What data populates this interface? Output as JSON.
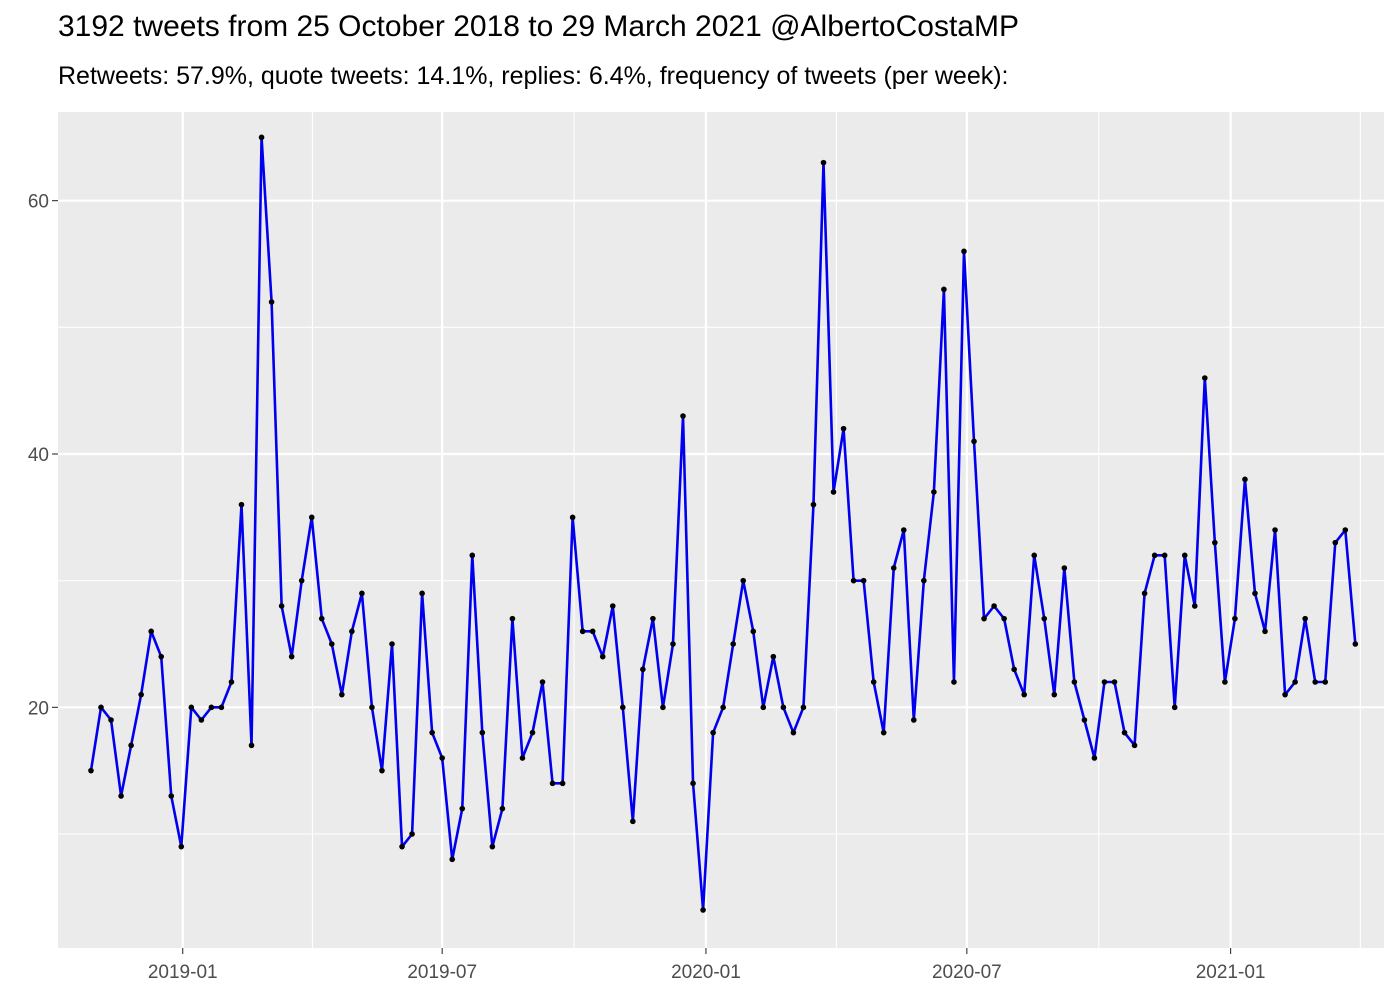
{
  "chart_data": {
    "type": "line",
    "title": "3192 tweets from 25 October 2018 to 29 March 2021 @AlbertoCostaMP",
    "subtitle": "Retweets: 57.9%, quote tweets: 14.1%, replies: 6.4%, frequency of tweets (per week):",
    "xlabel": "",
    "ylabel": "",
    "x_tick_labels": [
      "2019-01",
      "2019-07",
      "2020-01",
      "2020-07",
      "2021-01"
    ],
    "y_tick_labels": [
      "20",
      "40",
      "60"
    ],
    "y_ticks": [
      20,
      40,
      60
    ],
    "ylim": [
      1,
      67
    ],
    "xlim": [
      "2018-10-06",
      "2021-04-18"
    ],
    "x_tick_dates": [
      "2019-01-01",
      "2019-07-01",
      "2020-01-01",
      "2020-07-01",
      "2021-01-01"
    ],
    "grid": true,
    "line_color": "#0000ee",
    "point_color": "#000000",
    "panel_background": "#ebebeb",
    "series": [
      {
        "x": [
          "2018-10-29",
          "2018-11-05",
          "2018-11-12",
          "2018-11-19",
          "2018-11-26",
          "2018-12-03",
          "2018-12-10",
          "2018-12-17",
          "2018-12-24",
          "2018-12-31",
          "2019-01-07",
          "2019-01-14",
          "2019-01-21",
          "2019-01-28",
          "2019-02-04",
          "2019-02-11",
          "2019-02-18",
          "2019-02-25",
          "2019-03-04",
          "2019-03-11",
          "2019-03-18",
          "2019-03-25",
          "2019-04-01",
          "2019-04-08",
          "2019-04-15",
          "2019-04-22",
          "2019-04-29",
          "2019-05-06",
          "2019-05-13",
          "2019-05-20",
          "2019-05-27",
          "2019-06-03",
          "2019-06-10",
          "2019-06-17",
          "2019-06-24",
          "2019-07-01",
          "2019-07-08",
          "2019-07-15",
          "2019-07-22",
          "2019-07-29",
          "2019-08-05",
          "2019-08-12",
          "2019-08-19",
          "2019-08-26",
          "2019-09-02",
          "2019-09-09",
          "2019-09-16",
          "2019-09-23",
          "2019-09-30",
          "2019-10-07",
          "2019-10-14",
          "2019-10-21",
          "2019-10-28",
          "2019-11-04",
          "2019-11-11",
          "2019-11-18",
          "2019-11-25",
          "2019-12-02",
          "2019-12-09",
          "2019-12-16",
          "2019-12-23",
          "2019-12-30",
          "2020-01-06",
          "2020-01-13",
          "2020-01-20",
          "2020-01-27",
          "2020-02-03",
          "2020-02-10",
          "2020-02-17",
          "2020-02-24",
          "2020-03-02",
          "2020-03-09",
          "2020-03-16",
          "2020-03-23",
          "2020-03-30",
          "2020-04-06",
          "2020-04-13",
          "2020-04-20",
          "2020-04-27",
          "2020-05-04",
          "2020-05-11",
          "2020-05-18",
          "2020-05-25",
          "2020-06-01",
          "2020-06-08",
          "2020-06-15",
          "2020-06-22",
          "2020-06-29",
          "2020-07-06",
          "2020-07-13",
          "2020-07-20",
          "2020-07-27",
          "2020-08-03",
          "2020-08-10",
          "2020-08-17",
          "2020-08-24",
          "2020-08-31",
          "2020-09-07",
          "2020-09-14",
          "2020-09-21",
          "2020-09-28",
          "2020-10-05",
          "2020-10-12",
          "2020-10-19",
          "2020-10-26",
          "2020-11-02",
          "2020-11-09",
          "2020-11-16",
          "2020-11-23",
          "2020-11-30",
          "2020-12-07",
          "2020-12-14",
          "2020-12-21",
          "2020-12-28",
          "2021-01-04",
          "2021-01-11",
          "2021-01-18",
          "2021-01-25",
          "2021-02-01",
          "2021-02-08",
          "2021-02-15",
          "2021-02-22",
          "2021-03-01",
          "2021-03-08",
          "2021-03-15",
          "2021-03-22",
          "2021-03-29"
        ],
        "y": [
          15,
          20,
          19,
          13,
          17,
          21,
          26,
          24,
          13,
          9,
          20,
          19,
          20,
          20,
          22,
          36,
          17,
          65,
          52,
          28,
          24,
          30,
          35,
          27,
          25,
          21,
          26,
          29,
          20,
          15,
          25,
          9,
          10,
          29,
          18,
          16,
          8,
          12,
          32,
          18,
          9,
          12,
          27,
          16,
          18,
          22,
          14,
          14,
          35,
          26,
          26,
          24,
          28,
          20,
          11,
          23,
          27,
          20,
          25,
          43,
          14,
          4,
          18,
          20,
          25,
          30,
          26,
          20,
          24,
          20,
          18,
          20,
          36,
          63,
          37,
          42,
          30,
          30,
          22,
          18,
          31,
          34,
          19,
          30,
          37,
          53,
          22,
          56,
          41,
          27,
          28,
          27,
          23,
          21,
          32,
          27,
          21,
          31,
          22,
          19,
          16,
          22,
          22,
          18,
          17,
          29,
          32,
          32,
          20,
          32,
          28,
          46,
          33,
          22,
          27,
          38,
          29,
          26,
          34,
          21,
          22,
          27,
          22,
          22,
          33,
          34,
          25
        ]
      }
    ]
  }
}
